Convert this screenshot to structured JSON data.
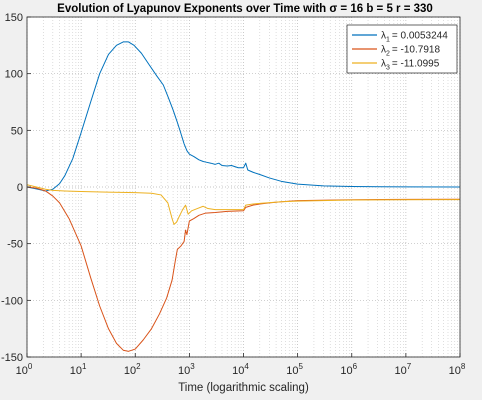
{
  "chart_data": {
    "type": "line",
    "title": "Evolution of Lyapunov Exponents over Time with σ = 16 b = 5 r = 330",
    "xlabel": "Time (logarithmic scaling)",
    "ylabel": "",
    "x_scale": "log",
    "xlim": [
      1,
      100000000
    ],
    "ylim": [
      -150,
      150
    ],
    "grid": "on (major and minor, dotted)",
    "legend_position": "top-right",
    "x_ticks": [
      {
        "value": 1,
        "base": "10",
        "exp": "0"
      },
      {
        "value": 10,
        "base": "10",
        "exp": "1"
      },
      {
        "value": 100,
        "base": "10",
        "exp": "2"
      },
      {
        "value": 1000,
        "base": "10",
        "exp": "3"
      },
      {
        "value": 10000,
        "base": "10",
        "exp": "4"
      },
      {
        "value": 100000,
        "base": "10",
        "exp": "5"
      },
      {
        "value": 1000000,
        "base": "10",
        "exp": "6"
      },
      {
        "value": 10000000,
        "base": "10",
        "exp": "7"
      },
      {
        "value": 100000000,
        "base": "10",
        "exp": "8"
      }
    ],
    "y_ticks": [
      {
        "value": 150,
        "label": "150"
      },
      {
        "value": 100,
        "label": "100"
      },
      {
        "value": 50,
        "label": "50"
      },
      {
        "value": 0,
        "label": "0"
      },
      {
        "value": -50,
        "label": "-50"
      },
      {
        "value": -100,
        "label": "-100"
      },
      {
        "value": -150,
        "label": "-150"
      }
    ],
    "series": [
      {
        "name": "λ1 = 0.0053244",
        "legend_symbol": "λ",
        "legend_sub": "1",
        "legend_value": "= 0.0053244",
        "color": "#0072bd",
        "points": [
          [
            1,
            0
          ],
          [
            1.6,
            -2
          ],
          [
            2.2,
            -3.5
          ],
          [
            3,
            -2
          ],
          [
            4,
            3
          ],
          [
            5,
            10
          ],
          [
            7,
            25
          ],
          [
            10,
            48
          ],
          [
            15,
            75
          ],
          [
            22,
            100
          ],
          [
            32,
            117
          ],
          [
            45,
            125
          ],
          [
            60,
            128
          ],
          [
            75,
            128
          ],
          [
            95,
            125
          ],
          [
            130,
            118
          ],
          [
            180,
            108
          ],
          [
            250,
            98
          ],
          [
            330,
            90
          ],
          [
            400,
            80
          ],
          [
            500,
            68
          ],
          [
            600,
            57
          ],
          [
            700,
            47
          ],
          [
            800,
            38
          ],
          [
            900,
            32
          ],
          [
            1000,
            29
          ],
          [
            1200,
            27
          ],
          [
            1500,
            24
          ],
          [
            1800,
            22.5
          ],
          [
            2000,
            22
          ],
          [
            2500,
            21
          ],
          [
            3000,
            20
          ],
          [
            3500,
            21
          ],
          [
            4000,
            19
          ],
          [
            5000,
            18.5
          ],
          [
            6000,
            19
          ],
          [
            8000,
            17
          ],
          [
            10000,
            17
          ],
          [
            11000,
            21
          ],
          [
            12000,
            15
          ],
          [
            15000,
            13
          ],
          [
            20000,
            11
          ],
          [
            30000,
            8
          ],
          [
            50000,
            5
          ],
          [
            100000,
            2.5
          ],
          [
            300000,
            1
          ],
          [
            1000000,
            0.4
          ],
          [
            10000000,
            0.1
          ],
          [
            100000000,
            0.0053244
          ]
        ]
      },
      {
        "name": "λ2 = -10.7918",
        "legend_symbol": "λ",
        "legend_sub": "2",
        "legend_value": "= -10.7918",
        "color": "#d95319",
        "points": [
          [
            1,
            0
          ],
          [
            1.5,
            -1
          ],
          [
            2.2,
            -3.5
          ],
          [
            3,
            -8
          ],
          [
            4,
            -14
          ],
          [
            6,
            -28
          ],
          [
            10,
            -52
          ],
          [
            15,
            -80
          ],
          [
            22,
            -105
          ],
          [
            32,
            -125
          ],
          [
            45,
            -138
          ],
          [
            60,
            -144
          ],
          [
            75,
            -145
          ],
          [
            100,
            -143
          ],
          [
            140,
            -135
          ],
          [
            200,
            -125
          ],
          [
            280,
            -112
          ],
          [
            380,
            -98
          ],
          [
            480,
            -82
          ],
          [
            550,
            -65
          ],
          [
            600,
            -55
          ],
          [
            700,
            -52
          ],
          [
            800,
            -48
          ],
          [
            850,
            -38
          ],
          [
            900,
            -42
          ],
          [
            1000,
            -30
          ],
          [
            1200,
            -28
          ],
          [
            1500,
            -25
          ],
          [
            2000,
            -23
          ],
          [
            3000,
            -22.5
          ],
          [
            5000,
            -21.5
          ],
          [
            10000,
            -21
          ],
          [
            11000,
            -18
          ],
          [
            15000,
            -16
          ],
          [
            20000,
            -15
          ],
          [
            30000,
            -14
          ],
          [
            50000,
            -13
          ],
          [
            100000,
            -12
          ],
          [
            1000000,
            -11.2
          ],
          [
            10000000,
            -10.9
          ],
          [
            100000000,
            -10.7918
          ]
        ]
      },
      {
        "name": "λ3 = -11.0995",
        "legend_symbol": "λ",
        "legend_sub": "3",
        "legend_value": "= -11.0995",
        "color": "#edb120",
        "points": [
          [
            1,
            2
          ],
          [
            1.5,
            0
          ],
          [
            2.2,
            -2
          ],
          [
            3,
            -3
          ],
          [
            5,
            -3.5
          ],
          [
            10,
            -4
          ],
          [
            30,
            -4.5
          ],
          [
            100,
            -5
          ],
          [
            200,
            -5.5
          ],
          [
            300,
            -7
          ],
          [
            400,
            -14
          ],
          [
            480,
            -28
          ],
          [
            520,
            -33
          ],
          [
            580,
            -31
          ],
          [
            650,
            -26
          ],
          [
            750,
            -20
          ],
          [
            850,
            -16
          ],
          [
            950,
            -24
          ],
          [
            1100,
            -21
          ],
          [
            1400,
            -19
          ],
          [
            1800,
            -17
          ],
          [
            2200,
            -19
          ],
          [
            3000,
            -20
          ],
          [
            5000,
            -20
          ],
          [
            10000,
            -20
          ],
          [
            11000,
            -16
          ],
          [
            15000,
            -15
          ],
          [
            20000,
            -14.5
          ],
          [
            50000,
            -13
          ],
          [
            100000,
            -12.5
          ],
          [
            1000000,
            -11.5
          ],
          [
            10000000,
            -11.2
          ],
          [
            100000000,
            -11.0995
          ]
        ]
      }
    ]
  }
}
